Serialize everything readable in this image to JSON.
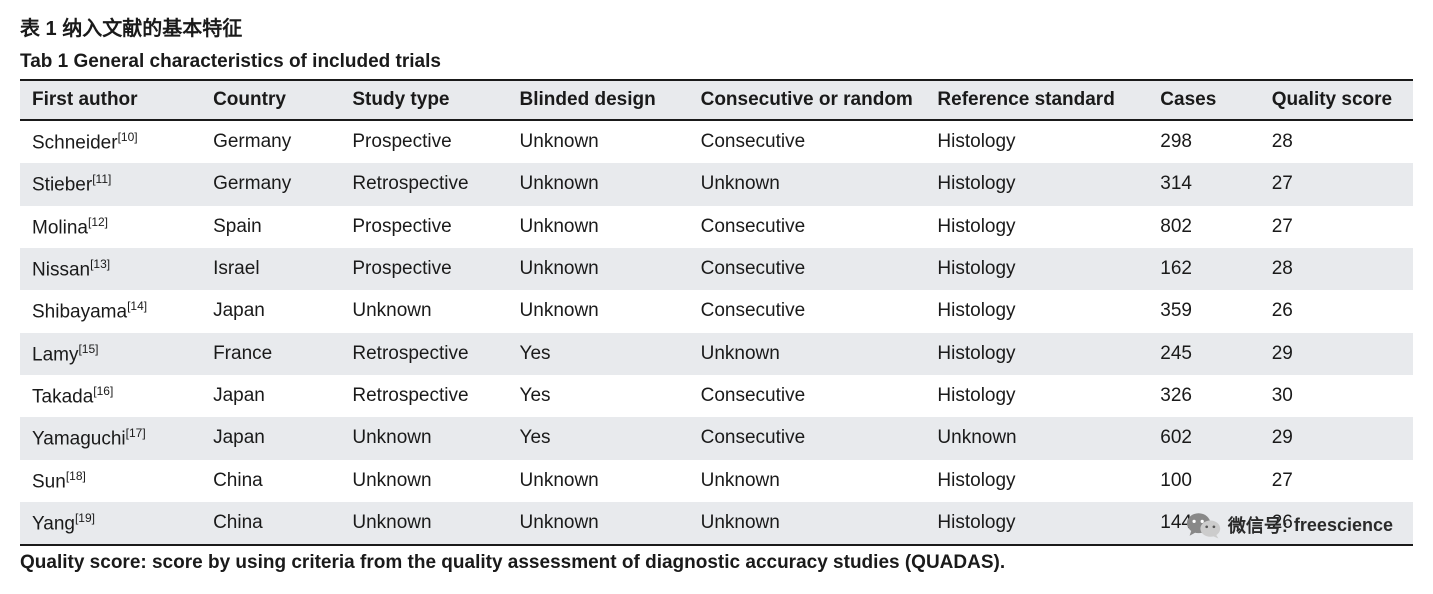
{
  "titles": {
    "cn": "表 1  纳入文献的基本特征",
    "en": "Tab 1  General characteristics of included trials"
  },
  "table": {
    "columns": [
      "First author",
      "Country",
      "Study type",
      "Blinded design",
      "Consecutive or random",
      "Reference standard",
      "Cases",
      "Quality score"
    ],
    "rows": [
      {
        "author": "Schneider",
        "ref": "[10]",
        "country": "Germany",
        "study_type": "Prospective",
        "blinded": "Unknown",
        "consec": "Consecutive",
        "refstd": "Histology",
        "cases": "298",
        "quality": "28"
      },
      {
        "author": "Stieber",
        "ref": "[11]",
        "country": "Germany",
        "study_type": "Retrospective",
        "blinded": "Unknown",
        "consec": "Unknown",
        "refstd": "Histology",
        "cases": "314",
        "quality": "27"
      },
      {
        "author": "Molina",
        "ref": "[12]",
        "country": "Spain",
        "study_type": "Prospective",
        "blinded": "Unknown",
        "consec": "Consecutive",
        "refstd": "Histology",
        "cases": "802",
        "quality": "27"
      },
      {
        "author": "Nissan",
        "ref": "[13]",
        "country": "Israel",
        "study_type": "Prospective",
        "blinded": "Unknown",
        "consec": "Consecutive",
        "refstd": "Histology",
        "cases": "162",
        "quality": "28"
      },
      {
        "author": "Shibayama",
        "ref": "[14]",
        "country": "Japan",
        "study_type": "Unknown",
        "blinded": "Unknown",
        "consec": "Consecutive",
        "refstd": "Histology",
        "cases": "359",
        "quality": "26"
      },
      {
        "author": "Lamy",
        "ref": "[15]",
        "country": "France",
        "study_type": "Retrospective",
        "blinded": "Yes",
        "consec": "Unknown",
        "refstd": "Histology",
        "cases": "245",
        "quality": "29"
      },
      {
        "author": "Takada",
        "ref": "[16]",
        "country": "Japan",
        "study_type": "Retrospective",
        "blinded": "Yes",
        "consec": "Consecutive",
        "refstd": "Histology",
        "cases": "326",
        "quality": "30"
      },
      {
        "author": "Yamaguchi",
        "ref": "[17]",
        "country": "Japan",
        "study_type": "Unknown",
        "blinded": "Yes",
        "consec": "Consecutive",
        "refstd": "Unknown",
        "cases": "602",
        "quality": "29"
      },
      {
        "author": "Sun",
        "ref": "[18]",
        "country": "China",
        "study_type": "Unknown",
        "blinded": "Unknown",
        "consec": "Unknown",
        "refstd": "Histology",
        "cases": "100",
        "quality": "27"
      },
      {
        "author": "Yang",
        "ref": "[19]",
        "country": "China",
        "study_type": "Unknown",
        "blinded": "Unknown",
        "consec": "Unknown",
        "refstd": "Histology",
        "cases": "144",
        "quality": "26"
      }
    ],
    "column_widths": [
      "13%",
      "10%",
      "12%",
      "13%",
      "17%",
      "16%",
      "8%",
      "11%"
    ],
    "header_bg": "#e8eaed",
    "row_odd_bg": "#ffffff",
    "row_even_bg": "#e8eaed",
    "border_color": "#1a1a1a",
    "text_color": "#1a1a1a",
    "font_size": 19
  },
  "footnote": "Quality score: score by using criteria from the quality assessment of diagnostic accuracy studies (QUADAS).",
  "watermark": {
    "label": "微信号:",
    "value": "freescience",
    "icon_color_outer": "#888888",
    "icon_color_inner": "#cccccc"
  }
}
